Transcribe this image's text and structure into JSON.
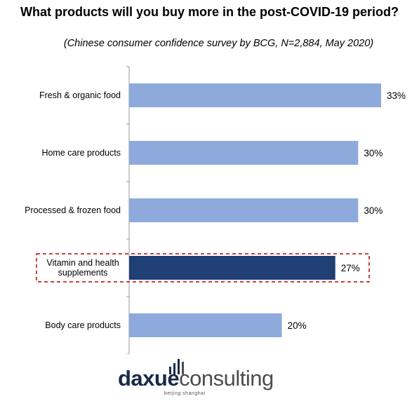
{
  "title": "What products will you buy more in the post-COVID-19 period?",
  "subtitle": "(Chinese consumer confidence survey by BCG, N=2,884, May 2020)",
  "colors": {
    "bar": "#8eaadc",
    "highlight_bar": "#1f3f75",
    "highlight_box": "#c00000",
    "axis": "#999999"
  },
  "chart_data": {
    "type": "bar",
    "orientation": "horizontal",
    "categories": [
      "Fresh & organic food",
      "Home care products",
      "Processed & frozen food",
      "Vitamin and health supplements",
      "Body care products"
    ],
    "category_lines": [
      [
        "Fresh & organic food"
      ],
      [
        "Home care products"
      ],
      [
        "Processed & frozen food"
      ],
      [
        "Vitamin and health",
        "supplements"
      ],
      [
        "Body care products"
      ]
    ],
    "values": [
      33,
      30,
      30,
      27,
      20
    ],
    "value_labels": [
      "33%",
      "30%",
      "30%",
      "27%",
      "20%"
    ],
    "highlight_index": 3,
    "unit": "%",
    "xlim": [
      0,
      33
    ],
    "grid": false
  },
  "logo": {
    "brand_part1": "daxue",
    "brand_part2": "consulting",
    "tagline": "beijing shanghai"
  }
}
